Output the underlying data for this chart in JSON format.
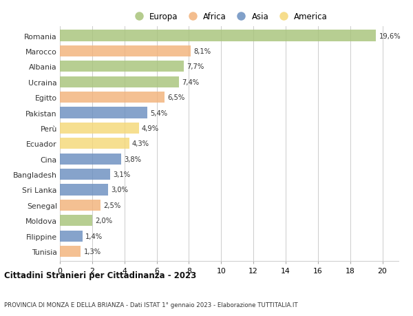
{
  "countries": [
    "Romania",
    "Marocco",
    "Albania",
    "Ucraina",
    "Egitto",
    "Pakistan",
    "Perù",
    "Ecuador",
    "Cina",
    "Bangladesh",
    "Sri Lanka",
    "Senegal",
    "Moldova",
    "Filippine",
    "Tunisia"
  ],
  "values": [
    19.6,
    8.1,
    7.7,
    7.4,
    6.5,
    5.4,
    4.9,
    4.3,
    3.8,
    3.1,
    3.0,
    2.5,
    2.0,
    1.4,
    1.3
  ],
  "labels": [
    "19,6%",
    "8,1%",
    "7,7%",
    "7,4%",
    "6,5%",
    "5,4%",
    "4,9%",
    "4,3%",
    "3,8%",
    "3,1%",
    "3,0%",
    "2,5%",
    "2,0%",
    "1,4%",
    "1,3%"
  ],
  "continents": [
    "Europa",
    "Africa",
    "Europa",
    "Europa",
    "Africa",
    "Asia",
    "America",
    "America",
    "Asia",
    "Asia",
    "Asia",
    "Africa",
    "Europa",
    "Asia",
    "Africa"
  ],
  "colors": {
    "Europa": "#a8c47a",
    "Africa": "#f2b27a",
    "Asia": "#6b8fc0",
    "America": "#f5d878"
  },
  "xlim": [
    0,
    21
  ],
  "xticks": [
    0,
    2,
    4,
    6,
    8,
    10,
    12,
    14,
    16,
    18,
    20
  ],
  "title": "Cittadini Stranieri per Cittadinanza - 2023",
  "subtitle": "PROVINCIA DI MONZA E DELLA BRIANZA - Dati ISTAT 1° gennaio 2023 - Elaborazione TUTTITALIA.IT",
  "bg_color": "#ffffff",
  "grid_color": "#cccccc",
  "bar_height": 0.72,
  "legend_order": [
    "Europa",
    "Africa",
    "Asia",
    "America"
  ]
}
